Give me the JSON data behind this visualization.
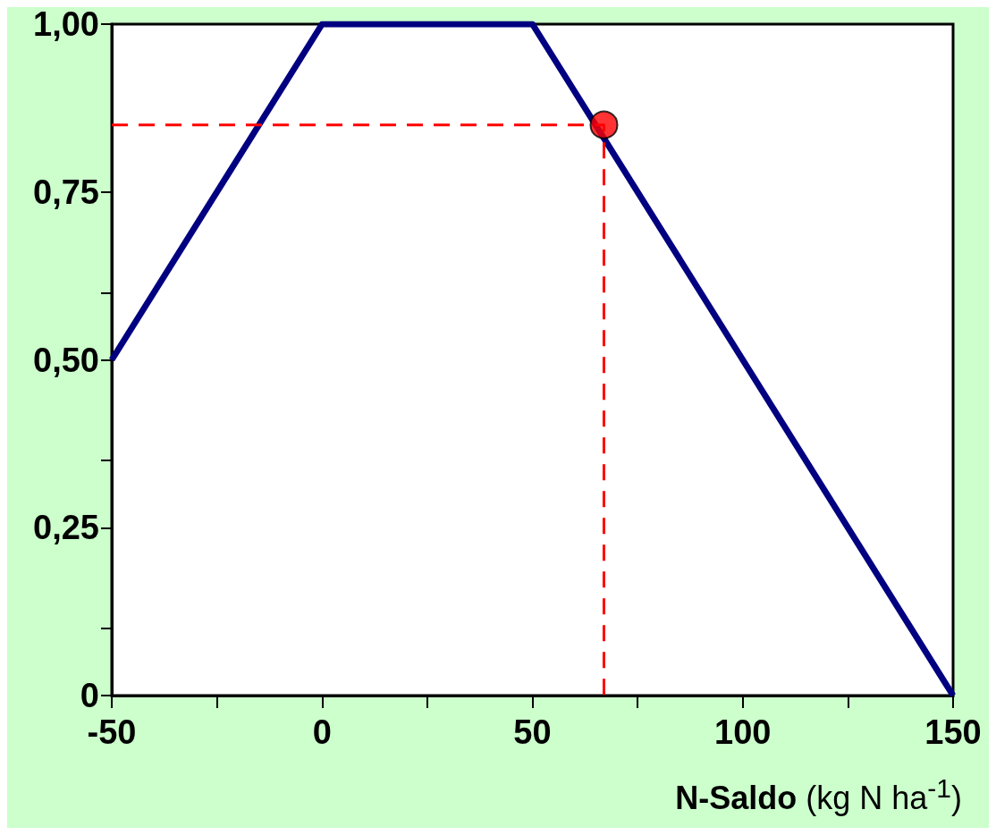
{
  "chart_data": {
    "type": "line",
    "xlabel": "N-Saldo (kg N ha$^{-1}$)",
    "xlim": [
      -50,
      150
    ],
    "xticks": [
      -50,
      {
        "value": -25,
        "label": null
      },
      0,
      {
        "value": 25,
        "label": null
      },
      50,
      {
        "value": 75,
        "label": null
      },
      100,
      {
        "value": 125,
        "label": null
      },
      150
    ],
    "ylim": [
      0,
      1
    ],
    "yticks": [
      0,
      {
        "value": 0.1,
        "label": null
      },
      {
        "value": 0.25,
        "label": "0,25"
      },
      {
        "value": 0.35,
        "label": null
      },
      {
        "value": 0.5,
        "label": "0,50"
      },
      {
        "value": 0.6,
        "label": null
      },
      {
        "value": 0.75,
        "label": "0,75"
      },
      {
        "value": 1,
        "label": "1,00"
      }
    ],
    "grid": false,
    "series": [
      {
        "color": "#000080",
        "x": [
          -50,
          0,
          50,
          150
        ],
        "values": [
          0.5,
          1,
          1,
          0
        ],
        "marker": "none",
        "line_style": "solid"
      },
      {
        "color": "#ff0000",
        "x": [
          -50,
          67,
          67
        ],
        "values": [
          0.85,
          0.85,
          0
        ],
        "marker": "none",
        "line_style": "dashed"
      },
      {
        "type": "scatter",
        "color": "#ff0000",
        "x": [
          67
        ],
        "values": [
          0.85
        ],
        "marker": "circle"
      }
    ]
  }
}
